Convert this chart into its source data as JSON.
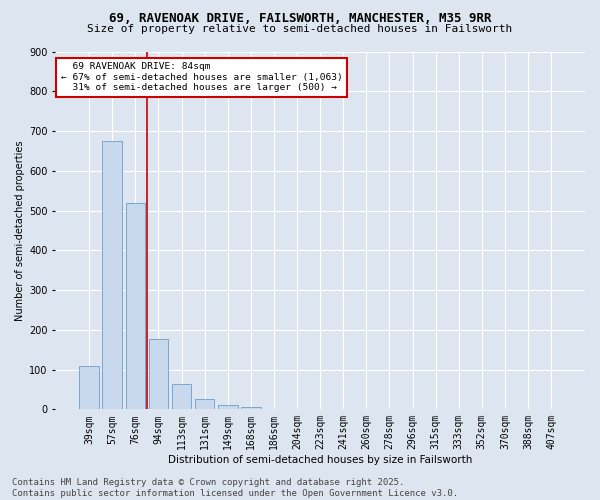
{
  "title1": "69, RAVENOAK DRIVE, FAILSWORTH, MANCHESTER, M35 9RR",
  "title2": "Size of property relative to semi-detached houses in Failsworth",
  "xlabel": "Distribution of semi-detached houses by size in Failsworth",
  "ylabel": "Number of semi-detached properties",
  "categories": [
    "39sqm",
    "57sqm",
    "76sqm",
    "94sqm",
    "113sqm",
    "131sqm",
    "149sqm",
    "168sqm",
    "186sqm",
    "204sqm",
    "223sqm",
    "241sqm",
    "260sqm",
    "278sqm",
    "296sqm",
    "315sqm",
    "333sqm",
    "352sqm",
    "370sqm",
    "388sqm",
    "407sqm"
  ],
  "values": [
    110,
    675,
    520,
    178,
    63,
    25,
    10,
    7,
    2,
    0,
    0,
    0,
    0,
    0,
    0,
    0,
    0,
    0,
    0,
    0,
    0
  ],
  "bar_color": "#c8d9ed",
  "bar_edge_color": "#5a8fc3",
  "red_line_x": 2.5,
  "annotation_title": "69 RAVENOAK DRIVE: 84sqm",
  "annotation_line1": "← 67% of semi-detached houses are smaller (1,063)",
  "annotation_line2": "31% of semi-detached houses are larger (500) →",
  "annotation_box_color": "#ffffff",
  "annotation_box_edge_color": "#cc0000",
  "red_line_color": "#cc0000",
  "footer1": "Contains HM Land Registry data © Crown copyright and database right 2025.",
  "footer2": "Contains public sector information licensed under the Open Government Licence v3.0.",
  "ylim": [
    0,
    900
  ],
  "background_color": "#dde6f0",
  "plot_bg_color": "#dde6f0",
  "grid_color": "#ffffff",
  "title_fontsize": 9,
  "subtitle_fontsize": 8,
  "tick_fontsize": 7,
  "footer_fontsize": 6.5
}
